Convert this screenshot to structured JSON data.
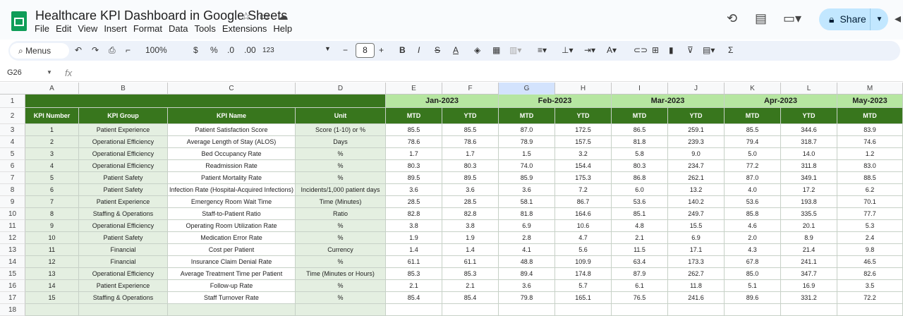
{
  "app": {
    "title": "Healthcare KPI Dashboard in Google Sheets",
    "menu": [
      "File",
      "Edit",
      "View",
      "Insert",
      "Format",
      "Data",
      "Tools",
      "Extensions",
      "Help"
    ],
    "share_label": "Share",
    "brand_color": "#0f9d58"
  },
  "toolbar": {
    "menus_label": "Menus",
    "zoom": "100%",
    "currency": "$",
    "percent": "%",
    "dec_decrease": ".0",
    "dec_increase": ".00",
    "number_format": "123",
    "font_size": "8"
  },
  "formula_bar": {
    "cell_ref": "G26",
    "fx": "fx"
  },
  "grid": {
    "columns": [
      "A",
      "B",
      "C",
      "D",
      "E",
      "F",
      "G",
      "H",
      "I",
      "J",
      "K",
      "L",
      "M"
    ],
    "rows": [
      "1",
      "2",
      "3",
      "4",
      "5",
      "6",
      "7",
      "8",
      "9",
      "10",
      "11",
      "12",
      "13",
      "14",
      "15",
      "16",
      "17",
      "18"
    ],
    "months": [
      "Jan-2023",
      "Feb-2023",
      "Mar-2023",
      "Apr-2023",
      "May-2023"
    ],
    "headers": [
      "KPI Number",
      "KPI Group",
      "KPI Name",
      "Unit"
    ],
    "mtd": "MTD",
    "ytd": "YTD",
    "header_color": "#38761d",
    "month_color": "#b6e6a1"
  },
  "kpis": [
    {
      "num": "1",
      "group": "Patient Experience",
      "name": "Patient Satisfaction Score",
      "unit": "Score (1-10) or %",
      "vals": [
        "85.5",
        "85.5",
        "87.0",
        "172.5",
        "86.5",
        "259.1",
        "85.5",
        "344.6",
        "83.9"
      ]
    },
    {
      "num": "2",
      "group": "Operational Efficiency",
      "name": "Average Length of Stay (ALOS)",
      "unit": "Days",
      "vals": [
        "78.6",
        "78.6",
        "78.9",
        "157.5",
        "81.8",
        "239.3",
        "79.4",
        "318.7",
        "74.6"
      ]
    },
    {
      "num": "3",
      "group": "Operational Efficiency",
      "name": "Bed Occupancy Rate",
      "unit": "%",
      "vals": [
        "1.7",
        "1.7",
        "1.5",
        "3.2",
        "5.8",
        "9.0",
        "5.0",
        "14.0",
        "1.2"
      ]
    },
    {
      "num": "4",
      "group": "Operational Efficiency",
      "name": "Readmission Rate",
      "unit": "%",
      "vals": [
        "80.3",
        "80.3",
        "74.0",
        "154.4",
        "80.3",
        "234.7",
        "77.2",
        "311.8",
        "83.0"
      ]
    },
    {
      "num": "5",
      "group": "Patient Safety",
      "name": "Patient Mortality Rate",
      "unit": "%",
      "vals": [
        "89.5",
        "89.5",
        "85.9",
        "175.3",
        "86.8",
        "262.1",
        "87.0",
        "349.1",
        "88.5"
      ]
    },
    {
      "num": "6",
      "group": "Patient Safety",
      "name": "Infection Rate (Hospital-Acquired Infections)",
      "unit": "Incidents/1,000 patient days",
      "vals": [
        "3.6",
        "3.6",
        "3.6",
        "7.2",
        "6.0",
        "13.2",
        "4.0",
        "17.2",
        "6.2"
      ]
    },
    {
      "num": "7",
      "group": "Patient Experience",
      "name": "Emergency Room Wait Time",
      "unit": "Time (Minutes)",
      "vals": [
        "28.5",
        "28.5",
        "58.1",
        "86.7",
        "53.6",
        "140.2",
        "53.6",
        "193.8",
        "70.1"
      ]
    },
    {
      "num": "8",
      "group": "Staffing & Operations",
      "name": "Staff-to-Patient Ratio",
      "unit": "Ratio",
      "vals": [
        "82.8",
        "82.8",
        "81.8",
        "164.6",
        "85.1",
        "249.7",
        "85.8",
        "335.5",
        "77.7"
      ]
    },
    {
      "num": "9",
      "group": "Operational Efficiency",
      "name": "Operating Room Utilization Rate",
      "unit": "%",
      "vals": [
        "3.8",
        "3.8",
        "6.9",
        "10.6",
        "4.8",
        "15.5",
        "4.6",
        "20.1",
        "5.3"
      ]
    },
    {
      "num": "10",
      "group": "Patient Safety",
      "name": "Medication Error Rate",
      "unit": "%",
      "vals": [
        "1.9",
        "1.9",
        "2.8",
        "4.7",
        "2.1",
        "6.9",
        "2.0",
        "8.9",
        "2.4"
      ]
    },
    {
      "num": "11",
      "group": "Financial",
      "name": "Cost per Patient",
      "unit": "Currency",
      "vals": [
        "1.4",
        "1.4",
        "4.1",
        "5.6",
        "11.5",
        "17.1",
        "4.3",
        "21.4",
        "9.8"
      ]
    },
    {
      "num": "12",
      "group": "Financial",
      "name": "Insurance Claim Denial Rate",
      "unit": "%",
      "vals": [
        "61.1",
        "61.1",
        "48.8",
        "109.9",
        "63.4",
        "173.3",
        "67.8",
        "241.1",
        "46.5"
      ]
    },
    {
      "num": "13",
      "group": "Operational Efficiency",
      "name": "Average Treatment Time per Patient",
      "unit": "Time (Minutes or Hours)",
      "vals": [
        "85.3",
        "85.3",
        "89.4",
        "174.8",
        "87.9",
        "262.7",
        "85.0",
        "347.7",
        "82.6"
      ]
    },
    {
      "num": "14",
      "group": "Patient Experience",
      "name": "Follow-up Rate",
      "unit": "%",
      "vals": [
        "2.1",
        "2.1",
        "3.6",
        "5.7",
        "6.1",
        "11.8",
        "5.1",
        "16.9",
        "3.5"
      ]
    },
    {
      "num": "15",
      "group": "Staffing & Operations",
      "name": "Staff Turnover Rate",
      "unit": "%",
      "vals": [
        "85.4",
        "85.4",
        "79.8",
        "165.1",
        "76.5",
        "241.6",
        "89.6",
        "331.2",
        "72.2"
      ]
    }
  ]
}
